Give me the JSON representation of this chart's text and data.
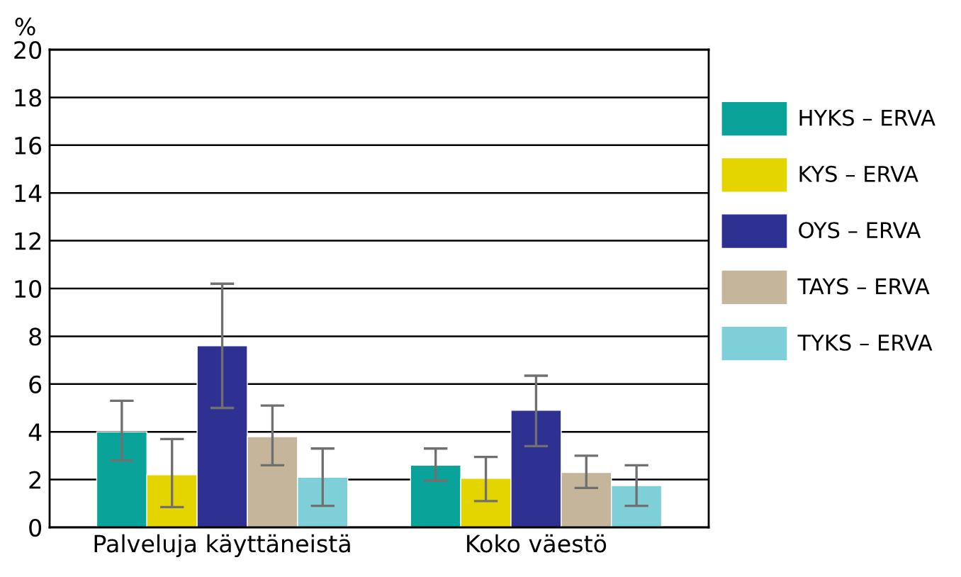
{
  "chart_data": {
    "type": "bar",
    "ylabel": "%",
    "categories": [
      "Palveluja käyttäneistä",
      "Koko väestö"
    ],
    "series": [
      {
        "name": "HYKS – ERVA",
        "color": "#0aa39a",
        "values": [
          4.0,
          2.6
        ],
        "errors": [
          [
            2.8,
            5.3
          ],
          [
            1.95,
            3.3
          ]
        ]
      },
      {
        "name": "KYS – ERVA",
        "color": "#e4d500",
        "values": [
          2.2,
          2.05
        ],
        "errors": [
          [
            0.85,
            3.7
          ],
          [
            1.1,
            2.95
          ]
        ]
      },
      {
        "name": "OYS – ERVA",
        "color": "#2e3191",
        "values": [
          7.6,
          4.9
        ],
        "errors": [
          [
            5.0,
            10.2
          ],
          [
            3.4,
            6.35
          ]
        ]
      },
      {
        "name": "TAYS – ERVA",
        "color": "#c4b59b",
        "values": [
          3.8,
          2.3
        ],
        "errors": [
          [
            2.6,
            5.1
          ],
          [
            1.65,
            3.0
          ]
        ]
      },
      {
        "name": "TYKS – ERVA",
        "color": "#7ecfd8",
        "values": [
          2.1,
          1.75
        ],
        "errors": [
          [
            0.9,
            3.3
          ],
          [
            0.9,
            2.6
          ]
        ]
      }
    ],
    "ylim": [
      0,
      20
    ],
    "yticks": [
      0,
      2,
      4,
      6,
      8,
      10,
      12,
      14,
      16,
      18,
      20
    ],
    "grid": "y",
    "legend": "right"
  }
}
